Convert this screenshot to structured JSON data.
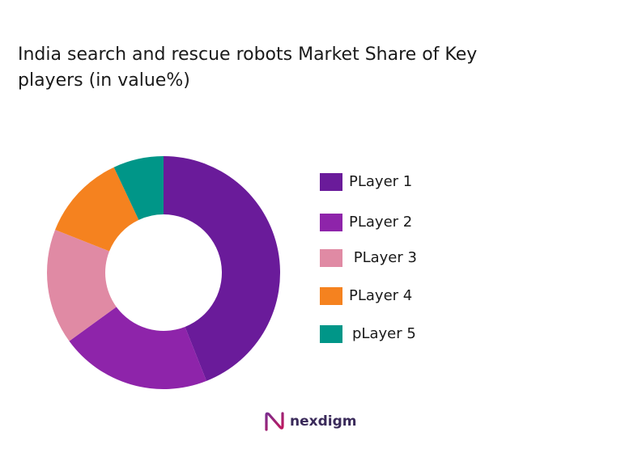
{
  "title_lines": [
    "India search and rescue robots Market Share of Key",
    "players (in value%)"
  ],
  "chart_data": {
    "type": "pie",
    "title": "India search and rescue robots Market Share of Key players (in value%)",
    "categories": [
      "PLayer 1",
      "PLayer 2",
      " PLayer 3",
      "PLayer 4",
      "pLayer 5"
    ],
    "values": [
      44,
      21,
      16,
      12,
      7
    ],
    "colors": [
      "#6a1b9a",
      "#8e24aa",
      "#e08aa4",
      "#f5821f",
      "#009688"
    ],
    "legend_position": "right"
  },
  "legend": [
    {
      "label": "PLayer 1",
      "color": "#6a1b9a"
    },
    {
      "label": "PLayer 2",
      "color": "#8e24aa"
    },
    {
      "label": " PLayer 3",
      "color": "#e08aa4"
    },
    {
      "label": "PLayer 4",
      "color": "#f5821f"
    },
    {
      "label": "pLayer 5",
      "color": "#009688"
    }
  ],
  "brand": {
    "name": "nexdigm",
    "logo_icon": "nexdigm-logo-icon"
  }
}
